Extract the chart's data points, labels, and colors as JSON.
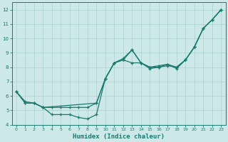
{
  "xlabel": "Humidex (Indice chaleur)",
  "bg_color": "#cce8e8",
  "grid_color": "#aad0d0",
  "line_color": "#1a7a6e",
  "xlim": [
    -0.5,
    23.5
  ],
  "ylim": [
    4.0,
    12.5
  ],
  "yticks": [
    4,
    5,
    6,
    7,
    8,
    9,
    10,
    11,
    12
  ],
  "xticks": [
    0,
    1,
    2,
    3,
    4,
    5,
    6,
    7,
    8,
    9,
    10,
    11,
    12,
    13,
    14,
    15,
    16,
    17,
    18,
    19,
    20,
    21,
    22,
    23
  ],
  "line1_x": [
    0,
    1,
    2,
    3,
    4,
    5,
    6,
    7,
    8,
    9,
    10,
    11,
    12,
    13,
    14,
    15,
    16,
    17,
    18,
    19,
    20,
    21,
    22,
    23
  ],
  "line1_y": [
    6.3,
    5.6,
    5.5,
    5.2,
    4.7,
    4.7,
    4.7,
    4.5,
    4.4,
    4.7,
    7.2,
    8.3,
    8.6,
    9.2,
    8.3,
    8.0,
    8.0,
    8.2,
    8.0,
    8.5,
    9.4,
    10.7,
    11.3,
    12.0
  ],
  "line2_x": [
    0,
    1,
    2,
    3,
    4,
    5,
    6,
    7,
    8,
    9,
    10,
    11,
    12,
    13,
    14,
    15,
    16,
    17,
    18,
    19,
    20,
    21,
    22,
    23
  ],
  "line2_y": [
    6.3,
    5.5,
    5.5,
    5.2,
    5.2,
    5.2,
    5.2,
    5.2,
    5.2,
    5.5,
    7.2,
    8.3,
    8.5,
    8.3,
    8.3,
    8.0,
    8.1,
    8.2,
    7.9,
    8.5,
    9.4,
    10.7,
    11.3,
    12.0
  ],
  "line3_x": [
    0,
    1,
    2,
    3,
    9,
    10,
    11,
    12,
    13,
    14,
    15,
    16,
    17,
    18,
    19,
    20,
    21,
    22,
    23
  ],
  "line3_y": [
    6.3,
    5.5,
    5.5,
    5.2,
    5.5,
    7.2,
    8.3,
    8.5,
    9.2,
    8.3,
    7.9,
    8.0,
    8.1,
    8.0,
    8.5,
    9.4,
    10.7,
    11.3,
    12.0
  ],
  "figsize": [
    3.2,
    2.0
  ],
  "dpi": 100
}
